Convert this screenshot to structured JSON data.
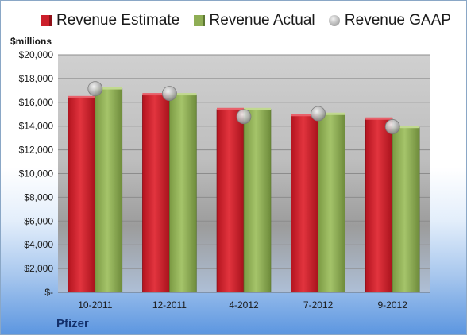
{
  "legend": {
    "estimate": "Revenue Estimate",
    "actual": "Revenue Actual",
    "gaap": "Revenue GAAP"
  },
  "unit_label": "$millions",
  "company": "Pfizer",
  "colors": {
    "estimate": "#cc1f2b",
    "actual": "#8fae55",
    "gaap": "#b9b9b9",
    "plot_bg": "#c9c9c9"
  },
  "chart_data": {
    "type": "bar",
    "categories": [
      "10-2011",
      "12-2011",
      "4-2012",
      "7-2012",
      "9-2012"
    ],
    "series": [
      {
        "name": "Revenue Estimate",
        "values": [
          16400,
          16650,
          15400,
          14900,
          14600
        ]
      },
      {
        "name": "Revenue Actual",
        "values": [
          17150,
          16650,
          15400,
          15000,
          13900
        ]
      },
      {
        "name": "Revenue GAAP",
        "values": [
          17150,
          16750,
          14800,
          15050,
          13950
        ]
      }
    ],
    "ylabel": "$millions",
    "ylim": [
      0,
      20000
    ],
    "yticks": [
      0,
      2000,
      4000,
      6000,
      8000,
      10000,
      12000,
      14000,
      16000,
      18000,
      20000
    ],
    "ytick_labels": [
      "$-",
      "$2,000",
      "$4,000",
      "$6,000",
      "$8,000",
      "$10,000",
      "$12,000",
      "$14,000",
      "$16,000",
      "$18,000",
      "$20,000"
    ],
    "grid": true,
    "legend_position": "top"
  }
}
